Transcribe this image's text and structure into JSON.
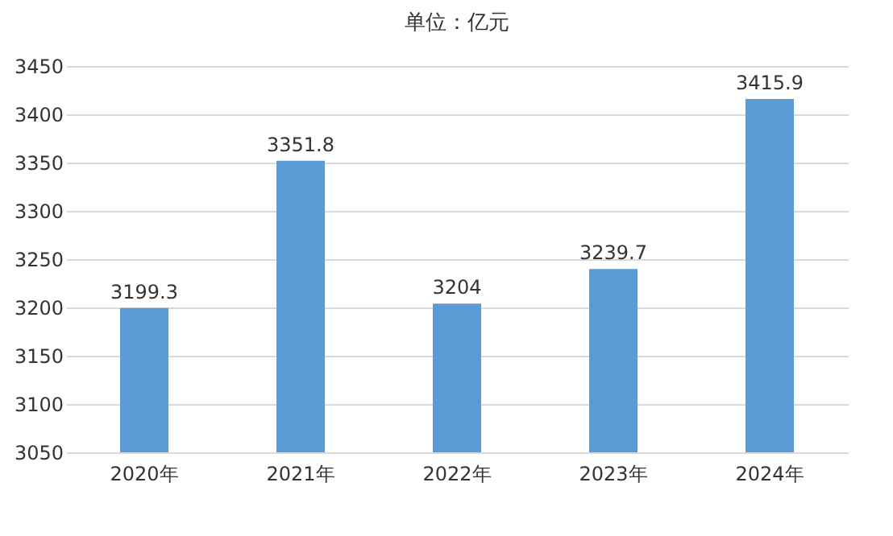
{
  "chart_data": {
    "type": "bar",
    "title": "单位：亿元",
    "categories": [
      "2020年",
      "2021年",
      "2022年",
      "2023年",
      "2024年"
    ],
    "values": [
      3199.3,
      3351.8,
      3204,
      3239.7,
      3415.9
    ],
    "color": "#5b9bd5",
    "ylim": [
      3050,
      3450
    ],
    "yticks": [
      3050,
      3100,
      3150,
      3200,
      3250,
      3300,
      3350,
      3400,
      3450
    ],
    "grid": "y",
    "data_labels": true
  }
}
